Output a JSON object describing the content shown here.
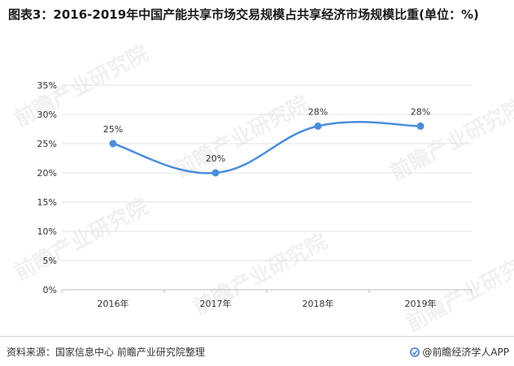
{
  "title": "图表3：2016-2019年中国产能共享市场交易规模占共享经济市场规模比重(单位：%)",
  "chart_data": {
    "type": "line",
    "categories": [
      "2016年",
      "2017年",
      "2018年",
      "2019年"
    ],
    "series": [
      {
        "values": [
          25,
          20,
          28,
          28
        ]
      }
    ],
    "data_labels": [
      "25%",
      "20%",
      "28%",
      "28%"
    ],
    "y_ticks": [
      "0%",
      "5%",
      "10%",
      "15%",
      "20%",
      "25%",
      "30%",
      "35%"
    ],
    "ylim": [
      0,
      35
    ],
    "grid": true,
    "line_color": "#4a8ddc",
    "smooth": true
  },
  "footer": {
    "source": "资料来源：国家信息中心 前瞻产业研究院整理",
    "brand": "@前瞻经济学人APP"
  },
  "watermark": "前瞻产业研究院",
  "colors": {
    "line": "#4a8ddc",
    "grid": "#e3e3e3",
    "axis": "#bdbdbd"
  }
}
